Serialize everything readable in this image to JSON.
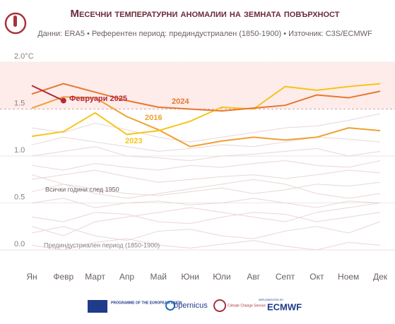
{
  "chart_data": {
    "type": "line",
    "title": "Месечни температурни аномалии на земната повърхност",
    "subtitle": "Данни: ERA5 • Референтен период: прединдустриален (1850-1900) • Източник: C3S/ECMWF",
    "categories": [
      "Ян",
      "Февр",
      "Март",
      "Апр",
      "Май",
      "Юни",
      "Юли",
      "Авг",
      "Септ",
      "Окт",
      "Ноем",
      "Дек"
    ],
    "ylim": [
      -0.12,
      2.0
    ],
    "yticks": [
      {
        "value": 0,
        "label": "0.0"
      },
      0.5,
      {
        "value": 1,
        "label": "1.0"
      },
      1.5,
      {
        "value": 2,
        "label": "2.0°C"
      }
    ],
    "highlight_band": [
      1.5,
      2.0
    ],
    "band_color": "#fdecea",
    "background": {
      "label": "Всички години след 1950",
      "color": "#ead6d6",
      "values": [
        [
          0.05,
          0.0,
          0.08,
          0.12,
          0.05,
          0.02,
          0.06,
          0.1,
          0.04,
          0.0,
          0.08,
          0.05
        ],
        [
          0.18,
          0.25,
          0.15,
          0.1,
          0.2,
          0.22,
          0.15,
          0.12,
          0.2,
          0.25,
          0.18,
          0.3
        ],
        [
          0.35,
          0.3,
          0.4,
          0.38,
          0.3,
          0.28,
          0.35,
          0.4,
          0.38,
          0.3,
          0.35,
          0.4
        ],
        [
          0.5,
          0.55,
          0.45,
          0.5,
          0.52,
          0.48,
          0.5,
          0.55,
          0.5,
          0.45,
          0.52,
          0.5
        ],
        [
          0.62,
          0.7,
          0.65,
          0.6,
          0.58,
          0.62,
          0.66,
          0.6,
          0.64,
          0.7,
          0.68,
          0.72
        ],
        [
          0.75,
          0.8,
          0.85,
          0.78,
          0.72,
          0.75,
          0.78,
          0.8,
          0.76,
          0.8,
          0.85,
          0.82
        ],
        [
          0.9,
          0.85,
          0.92,
          0.88,
          0.85,
          0.9,
          0.88,
          0.92,
          0.95,
          0.9,
          0.88,
          0.95
        ],
        [
          1.0,
          1.05,
          1.1,
          1.0,
          0.98,
          0.95,
          1.0,
          1.02,
          1.05,
          1.08,
          1.0,
          1.05
        ],
        [
          1.12,
          1.2,
          1.15,
          1.1,
          1.05,
          1.08,
          1.12,
          1.1,
          1.15,
          1.2,
          1.18,
          1.15
        ],
        [
          1.3,
          1.25,
          1.35,
          1.28,
          1.2,
          1.15,
          1.2,
          1.25,
          1.3,
          1.32,
          1.38,
          1.45
        ],
        [
          0.25,
          0.15,
          0.3,
          0.35,
          0.4,
          0.45,
          0.4,
          0.35,
          0.3,
          0.4,
          0.45,
          0.5
        ],
        [
          0.8,
          0.7,
          0.6,
          0.55,
          0.6,
          0.65,
          0.7,
          0.75,
          0.7,
          0.6,
          0.55,
          0.6
        ]
      ]
    },
    "series": [
      {
        "name": "2016",
        "color": "#f0a030",
        "values": [
          1.51,
          1.63,
          1.62,
          1.42,
          1.28,
          1.1,
          1.16,
          1.2,
          1.17,
          1.2,
          1.3,
          1.27
        ]
      },
      {
        "name": "2023",
        "color": "#f5c518",
        "values": [
          1.21,
          1.26,
          1.46,
          1.23,
          1.27,
          1.37,
          1.52,
          1.5,
          1.74,
          1.7,
          1.74,
          1.77
        ]
      },
      {
        "name": "2024",
        "color": "#e8772e",
        "values": [
          1.66,
          1.77,
          1.68,
          1.59,
          1.52,
          1.5,
          1.48,
          1.51,
          1.54,
          1.65,
          1.62,
          1.69
        ]
      },
      {
        "name": "Февруари 2025",
        "color": "#b5283b",
        "values": [
          1.75,
          1.59,
          null,
          null,
          null,
          null,
          null,
          null,
          null,
          null,
          null,
          null
        ]
      }
    ],
    "annotations": [
      "Всички години след 1950",
      "Прединдустриален период (1850-1900)"
    ],
    "footer": [
      "PROGRAMME OF THE EUROPEAN UNION",
      "opernicus",
      "Climate Change Service",
      "IMPLEMENTED BY",
      "ECMWF"
    ]
  }
}
